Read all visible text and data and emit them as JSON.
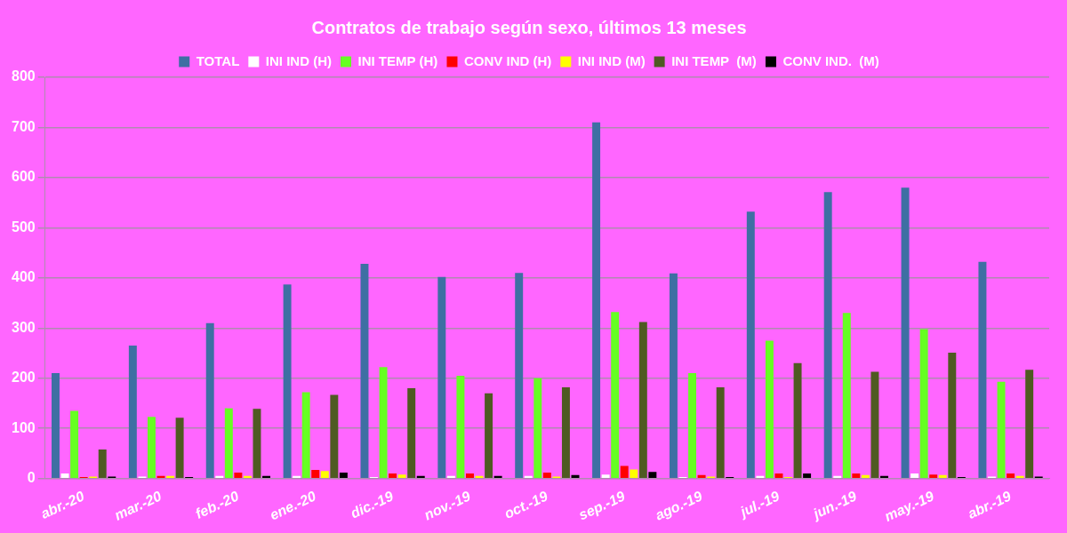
{
  "chart_data": {
    "type": "bar",
    "title": "Contratos de trabajo según sexo, últimos 13 meses",
    "categories": [
      "abr.-20",
      "mar.-20",
      "feb.-20",
      "ene.-20",
      "dic.-19",
      "nov.-19",
      "oct.-19",
      "sep.-19",
      "ago.-19",
      "jul.-19",
      "jun.-19",
      "may.-19",
      "abr.-19"
    ],
    "series": [
      {
        "name": "TOTAL",
        "color": "#3e6fa3",
        "values": [
          210,
          265,
          310,
          387,
          428,
          402,
          410,
          710,
          409,
          532,
          571,
          580,
          432
        ]
      },
      {
        "name": "INI IND (H)",
        "color": "#ffffff",
        "values": [
          10,
          4,
          5,
          5,
          3,
          5,
          5,
          8,
          3,
          5,
          5,
          10,
          4
        ]
      },
      {
        "name": "INI TEMP (H)",
        "color": "#66ff22",
        "values": [
          135,
          123,
          140,
          172,
          222,
          205,
          200,
          332,
          210,
          275,
          330,
          298,
          193
        ]
      },
      {
        "name": "CONV IND (H)",
        "color": "#ff0000",
        "values": [
          3,
          5,
          12,
          17,
          10,
          10,
          12,
          25,
          7,
          10,
          10,
          8,
          10
        ]
      },
      {
        "name": "INI IND (M)",
        "color": "#ffff00",
        "values": [
          4,
          5,
          5,
          15,
          8,
          5,
          4,
          18,
          4,
          3,
          7,
          7,
          5
        ]
      },
      {
        "name": "INI TEMP  (M)",
        "color": "#4f5a22",
        "values": [
          58,
          121,
          139,
          167,
          180,
          170,
          182,
          312,
          182,
          230,
          213,
          251,
          217
        ]
      },
      {
        "name": "CONV IND.  (M)",
        "color": "#000000",
        "values": [
          4,
          3,
          5,
          12,
          5,
          5,
          7,
          13,
          3,
          10,
          5,
          3,
          4
        ]
      }
    ],
    "ylim": [
      0,
      800
    ],
    "yticks": [
      0,
      100,
      200,
      300,
      400,
      500,
      600,
      700,
      800
    ],
    "grid": "y",
    "legend": "top"
  }
}
